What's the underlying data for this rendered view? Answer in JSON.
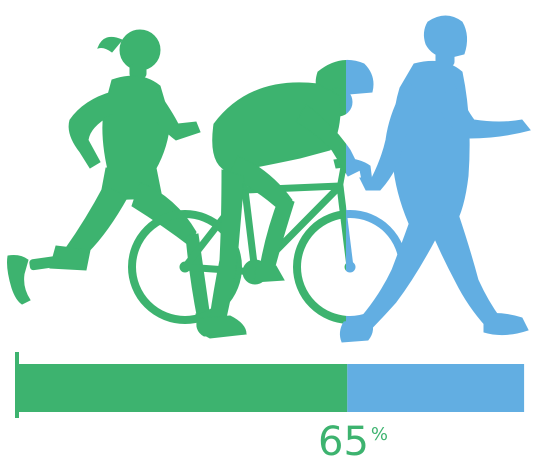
{
  "progress": {
    "value": 65,
    "display_value": "65",
    "unit": "%"
  },
  "colors": {
    "green": "#3db36f",
    "blue": "#62aee2",
    "background": "#ffffff"
  },
  "figures": [
    {
      "name": "runner-with-prosthetic-leg",
      "color": "green"
    },
    {
      "name": "cyclist-on-bicycle",
      "color": "green-and-blue"
    },
    {
      "name": "walking-man",
      "color": "blue"
    }
  ]
}
